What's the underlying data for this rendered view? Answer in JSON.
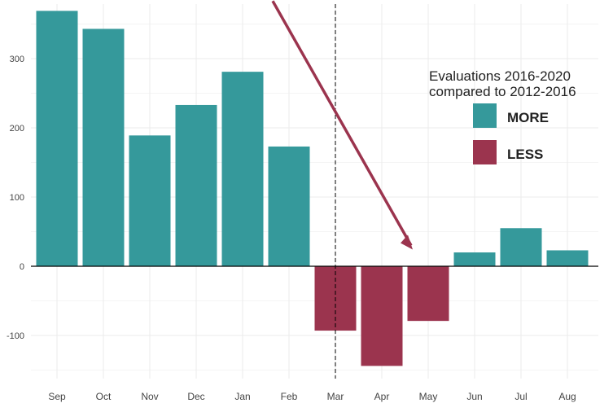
{
  "chart_data": {
    "type": "bar",
    "categories": [
      "Sep",
      "Oct",
      "Nov",
      "Dec",
      "Jan",
      "Feb",
      "Mar",
      "Apr",
      "May",
      "Jun",
      "Jul",
      "Aug"
    ],
    "values": [
      369,
      343,
      189,
      233,
      281,
      173,
      -93,
      -144,
      -79,
      20,
      55,
      23
    ],
    "ylim": [
      -160,
      385
    ],
    "yticks": [
      -100,
      0,
      100,
      200,
      300
    ],
    "grid": true,
    "colors": {
      "more": "#35999B",
      "less": "#9B344E"
    },
    "reference_line": {
      "at_category": "Mar",
      "style": "dashed"
    },
    "annotation": {
      "type": "arrow",
      "from": {
        "category": "Jan",
        "value": 255
      },
      "to": {
        "category": "May",
        "value": 30
      },
      "color": "#9B344E"
    },
    "legend": {
      "title_line1": "Evaluations 2016-2020",
      "title_line2": "compared to 2012-2016",
      "placement": "top-right",
      "items": [
        {
          "label": "MORE",
          "color": "#35999B"
        },
        {
          "label": "LESS",
          "color": "#9B344E"
        }
      ]
    }
  }
}
